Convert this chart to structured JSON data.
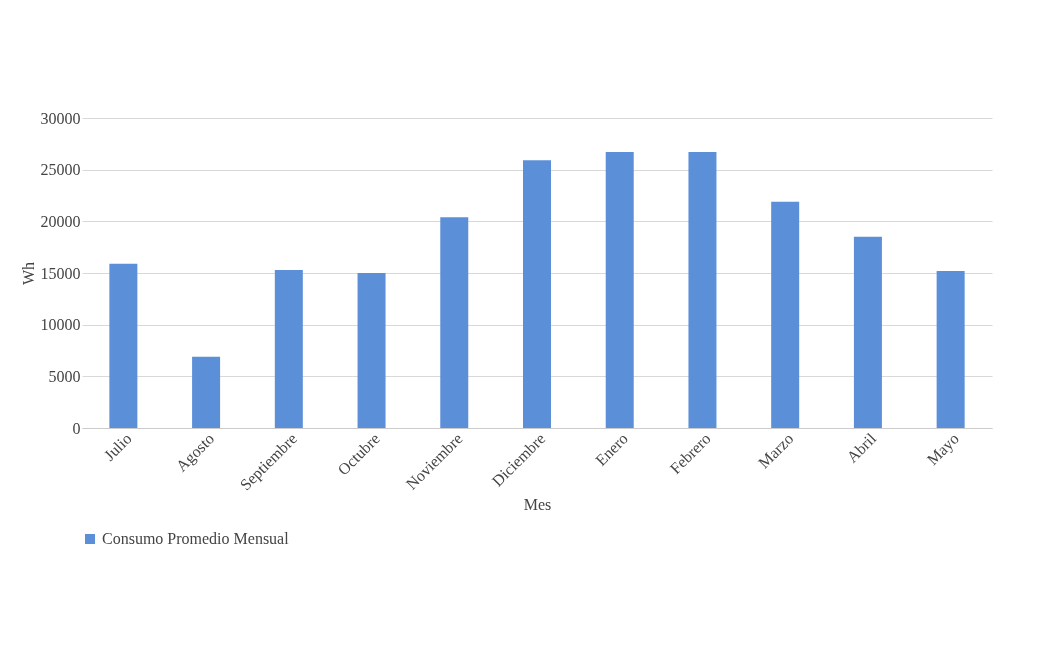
{
  "chart_data": {
    "type": "bar",
    "xlabel": "Mes",
    "ylabel": "Wh",
    "categories": [
      "Julio",
      "Agosto",
      "Septiembre",
      "Octubre",
      "Noviembre",
      "Diciembre",
      "Enero",
      "Febrero",
      "Marzo",
      "Abril",
      "Mayo"
    ],
    "series": [
      {
        "name": "Consumo Promedio Mensual",
        "color": "#5b8fd8",
        "values": [
          15900,
          6900,
          15300,
          15000,
          20400,
          25900,
          26700,
          26700,
          21900,
          18500,
          15200
        ]
      }
    ],
    "ylim": [
      0,
      30000
    ],
    "yticks": [
      0,
      5000,
      10000,
      15000,
      20000,
      25000,
      30000
    ],
    "grid": "y",
    "legend": "bottom"
  }
}
